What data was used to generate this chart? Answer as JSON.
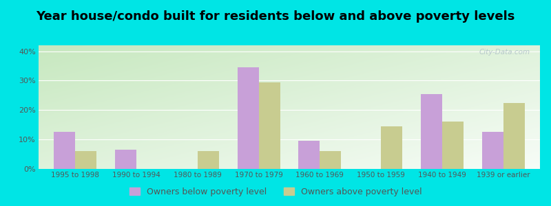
{
  "title": "Year house/condo built for residents below and above poverty levels",
  "categories": [
    "1995 to 1998",
    "1990 to 1994",
    "1980 to 1989",
    "1970 to 1979",
    "1960 to 1969",
    "1950 to 1959",
    "1940 to 1949",
    "1939 or earlier"
  ],
  "below_poverty": [
    12.5,
    6.5,
    0,
    34.5,
    9.5,
    0,
    25.5,
    12.5
  ],
  "above_poverty": [
    6.0,
    0,
    6.0,
    29.5,
    6.0,
    14.5,
    16.0,
    22.5
  ],
  "below_color": "#c8a0d8",
  "above_color": "#c8cc90",
  "ylabel_ticks": [
    "0%",
    "10%",
    "20%",
    "30%",
    "40%"
  ],
  "ytick_vals": [
    0,
    10,
    20,
    30,
    40
  ],
  "ylim": [
    0,
    42
  ],
  "legend_below": "Owners below poverty level",
  "legend_above": "Owners above poverty level",
  "bg_outer": "#00e5e5",
  "bg_plot_topleft": "#c8e8c0",
  "bg_plot_bottomright": "#f8f8f0",
  "tick_color": "#555555",
  "title_fontsize": 13,
  "bar_width": 0.35,
  "watermark": "City-Data.com"
}
